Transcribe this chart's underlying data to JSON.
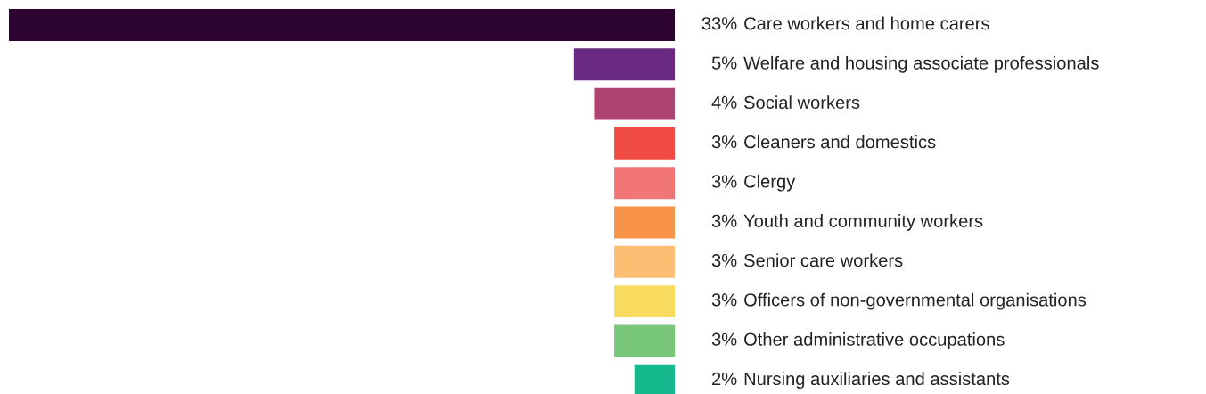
{
  "chart_data": {
    "type": "bar",
    "orientation": "horizontal",
    "categories": [
      "Care workers and home carers",
      "Welfare and housing associate professionals",
      "Social workers",
      "Cleaners and domestics",
      "Clergy",
      "Youth and community workers",
      "Senior care workers",
      "Officers of non-governmental organisations",
      "Other administrative occupations",
      "Nursing auxiliaries and assistants"
    ],
    "values": [
      33,
      5,
      4,
      3,
      3,
      3,
      3,
      3,
      3,
      2
    ],
    "value_labels": [
      "33%",
      "5%",
      "4%",
      "3%",
      "3%",
      "3%",
      "3%",
      "3%",
      "3%",
      "2%"
    ],
    "colors": [
      "#2d0530",
      "#6a2a83",
      "#ae4472",
      "#ef4b43",
      "#f37677",
      "#f89246",
      "#fcbe73",
      "#f9db5f",
      "#78c67a",
      "#16b88d"
    ],
    "xlim": [
      33,
      0
    ]
  }
}
